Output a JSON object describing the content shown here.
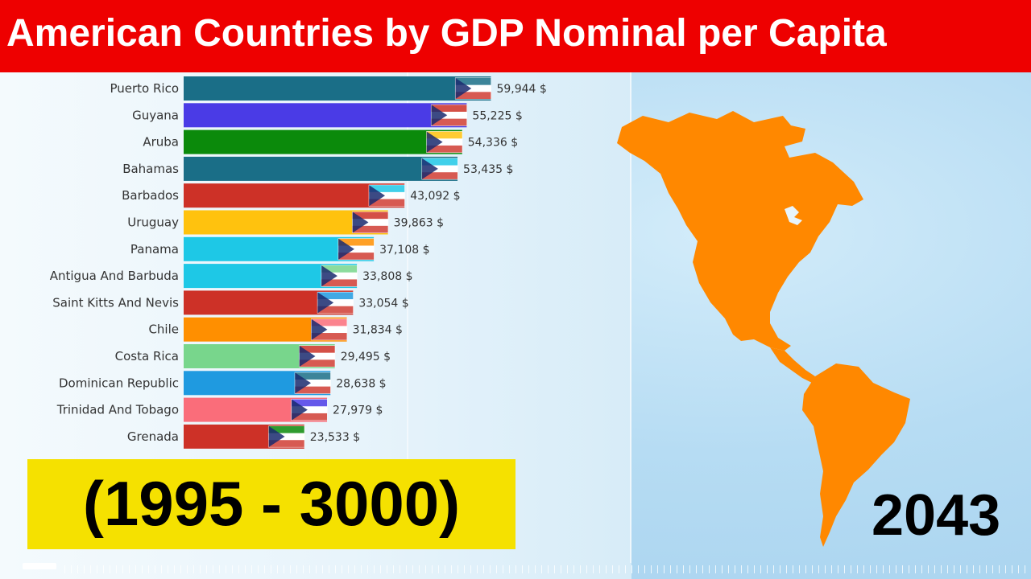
{
  "title": "American Countries by GDP Nominal per Capita",
  "range_label": "(1995 - 3000)",
  "year": "2043",
  "colors": {
    "title_bg": "#ee0000",
    "range_bg": "#f5e100",
    "map": "#ff8800"
  },
  "chart_data": {
    "type": "bar",
    "orientation": "horizontal",
    "title": "American Countries by GDP Nominal per Capita",
    "categories": [
      "Puerto Rico",
      "Guyana",
      "Aruba",
      "Bahamas",
      "Barbados",
      "Uruguay",
      "Panama",
      "Antigua And Barbuda",
      "Saint Kitts And Nevis",
      "Chile",
      "Costa Rica",
      "Dominican Republic",
      "Trinidad And Tobago",
      "Grenada"
    ],
    "values": [
      59944,
      55225,
      54336,
      53435,
      43092,
      39863,
      37108,
      33808,
      33054,
      31834,
      29495,
      28638,
      27979,
      23533
    ],
    "value_labels": [
      "59,944 $",
      "55,225 $",
      "54,336 $",
      "53,435 $",
      "43,092 $",
      "39,863 $",
      "37,108 $",
      "33,808 $",
      "33,054 $",
      "31,834 $",
      "29,495 $",
      "28,638 $",
      "27,979 $",
      "23,533 $"
    ],
    "colors": [
      "#1a6e87",
      "#4a3be6",
      "#0b8a0b",
      "#1a6e87",
      "#cd3127",
      "#ffc20e",
      "#1ec8e6",
      "#1ec8e6",
      "#cd3127",
      "#ff8f00",
      "#78d68c",
      "#1f9ae0",
      "#fa6d7a",
      "#cd3127"
    ],
    "flags": [
      "flag-puerto-rico",
      "flag-guyana",
      "flag-aruba",
      "flag-bahamas",
      "flag-barbados",
      "flag-uruguay",
      "flag-panama",
      "flag-antigua-and-barbuda",
      "flag-saint-kitts-and-nevis",
      "flag-chile",
      "flag-costa-rica",
      "flag-dominican-republic",
      "flag-trinidad-and-tobago",
      "flag-grenada"
    ],
    "xlim": [
      0,
      66000
    ],
    "grid": false,
    "legend": "none"
  }
}
